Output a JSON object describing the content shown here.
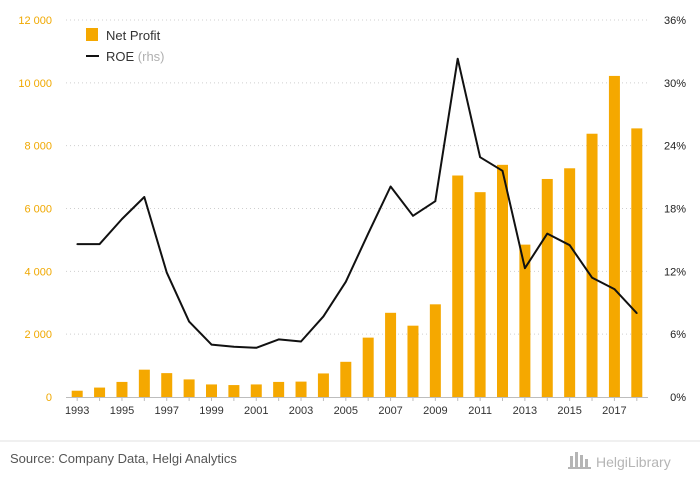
{
  "chart_data": {
    "type": "bar+line",
    "categories": [
      "1993",
      "1994",
      "1995",
      "1996",
      "1997",
      "1998",
      "1999",
      "2000",
      "2001",
      "2002",
      "2003",
      "2004",
      "2005",
      "2006",
      "2007",
      "2008",
      "2009",
      "2010",
      "2011",
      "2012",
      "2013",
      "2014",
      "2015",
      "2016",
      "2017",
      "2018"
    ],
    "x_tick_labels": [
      "1993",
      "1995",
      "1997",
      "1999",
      "2001",
      "2003",
      "2005",
      "2007",
      "2009",
      "2011",
      "2013",
      "2015",
      "2017"
    ],
    "series": [
      {
        "name": "Net Profit",
        "type": "bar",
        "axis": "left",
        "color": "#f5a800",
        "values": [
          200,
          300,
          480,
          870,
          760,
          560,
          400,
          380,
          400,
          480,
          490,
          750,
          1120,
          1890,
          2680,
          2270,
          2950,
          7050,
          6520,
          7390,
          4850,
          6940,
          7280,
          8380,
          10220,
          8550
        ]
      },
      {
        "name": "ROE",
        "name_suffix": "(rhs)",
        "type": "line",
        "axis": "right",
        "color": "#111111",
        "values": [
          14.6,
          14.6,
          17.0,
          19.1,
          11.9,
          7.2,
          5.0,
          4.8,
          4.7,
          5.5,
          5.3,
          7.7,
          11.0,
          15.6,
          20.1,
          17.3,
          18.7,
          32.3,
          22.9,
          21.6,
          12.3,
          15.6,
          14.5,
          11.4,
          10.3,
          8.0
        ]
      }
    ],
    "y_left": {
      "min": 0,
      "max": 12000,
      "ticks": [
        0,
        2000,
        4000,
        6000,
        8000,
        10000,
        12000
      ],
      "tick_labels": [
        "0",
        "2 000",
        "4 000",
        "6 000",
        "8 000",
        "10 000",
        "12 000"
      ],
      "color": "#f0a800"
    },
    "y_right": {
      "min": 0,
      "max": 36,
      "ticks": [
        0,
        6,
        12,
        18,
        24,
        30,
        36
      ],
      "tick_labels": [
        "0%",
        "6%",
        "12%",
        "18%",
        "24%",
        "30%",
        "36%"
      ]
    },
    "grid": true,
    "grid_style": "dotted",
    "legend_position": "top-left"
  },
  "footer": {
    "source": "Source: Company Data, Helgi Analytics",
    "brand": "HelgiLibrary"
  }
}
